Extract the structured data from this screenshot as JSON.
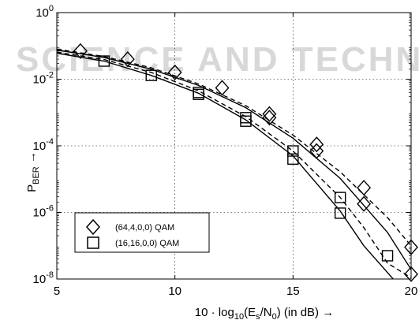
{
  "chart_data": {
    "type": "line",
    "x_axis": {
      "label_prefix": "10 · log",
      "label_sub": "10",
      "label_main": "(E",
      "label_sub2": "s",
      "label_mid": "/N",
      "label_sub3": "0",
      "label_suffix": ")    (in dB) →",
      "ticks": [
        5,
        10,
        15,
        20
      ],
      "tick_labels": [
        "5",
        "10",
        "15",
        "20"
      ],
      "range": [
        5,
        20
      ]
    },
    "y_axis": {
      "scale": "log",
      "label_main": "P",
      "label_sub": "BER",
      "label_suffix": " →",
      "ticks": [
        1e-08,
        1e-06,
        0.0001,
        0.01,
        1
      ],
      "tick_exponents": [
        "-8",
        "-6",
        "-4",
        "-2",
        "0"
      ],
      "tick_base": "10",
      "range": [
        1e-08,
        1
      ]
    },
    "grid": true,
    "legend": {
      "position": "bottom-left",
      "entries": [
        {
          "label": "(64,4,0,0) QAM",
          "marker": "diamond"
        },
        {
          "label": "(16,16,0,0) QAM",
          "marker": "square"
        }
      ]
    },
    "series": [
      {
        "marker": "diamond",
        "style": "points",
        "x": [
          6,
          8,
          10,
          12,
          14,
          14,
          16,
          16,
          18,
          18,
          20,
          20
        ],
        "y": [
          0.07,
          0.04,
          0.016,
          0.0055,
          0.0009,
          0.0007,
          0.00011,
          7e-05,
          5.5e-06,
          1.8e-06,
          9e-08,
          1.4e-08
        ]
      },
      {
        "marker": "square",
        "style": "points",
        "x": [
          7,
          9,
          11,
          11,
          13,
          13,
          15,
          15,
          17,
          17,
          19
        ],
        "y": [
          0.035,
          0.013,
          0.004,
          0.0035,
          0.0007,
          0.00055,
          7e-05,
          4e-05,
          2.8e-06,
          9.5e-07,
          5e-08
        ]
      },
      {
        "marker": "none",
        "style": "solid",
        "x": [
          5,
          7,
          9,
          11,
          13,
          15,
          17,
          19,
          20.2
        ],
        "y": [
          0.075,
          0.045,
          0.02,
          0.0065,
          0.0014,
          0.00017,
          1.05e-05,
          2.5e-07,
          1.15e-08
        ]
      },
      {
        "marker": "none",
        "style": "dashed",
        "x": [
          5,
          7,
          9,
          11,
          13,
          15,
          17,
          19,
          20.3
        ],
        "y": [
          0.08,
          0.048,
          0.022,
          0.0072,
          0.0016,
          0.00021,
          1.65e-05,
          7e-07,
          5.5e-08
        ]
      },
      {
        "marker": "none",
        "style": "solid",
        "x": [
          5,
          7,
          9,
          11,
          13,
          15,
          17,
          18,
          19.3
        ],
        "y": [
          0.06,
          0.035,
          0.013,
          0.0038,
          0.0006,
          5e-05,
          1.1e-06,
          1e-07,
          9e-09
        ]
      },
      {
        "marker": "none",
        "style": "dashed",
        "x": [
          5,
          7,
          9,
          11,
          13,
          15,
          17,
          18,
          19,
          20.3
        ],
        "y": [
          0.065,
          0.039,
          0.016,
          0.0045,
          0.00075,
          7e-05,
          2.8e-06,
          3.5e-07,
          3e-08,
          8e-09
        ]
      }
    ]
  },
  "watermark": {
    "text": "SCIENCE AND TECHNOLOGY"
  }
}
